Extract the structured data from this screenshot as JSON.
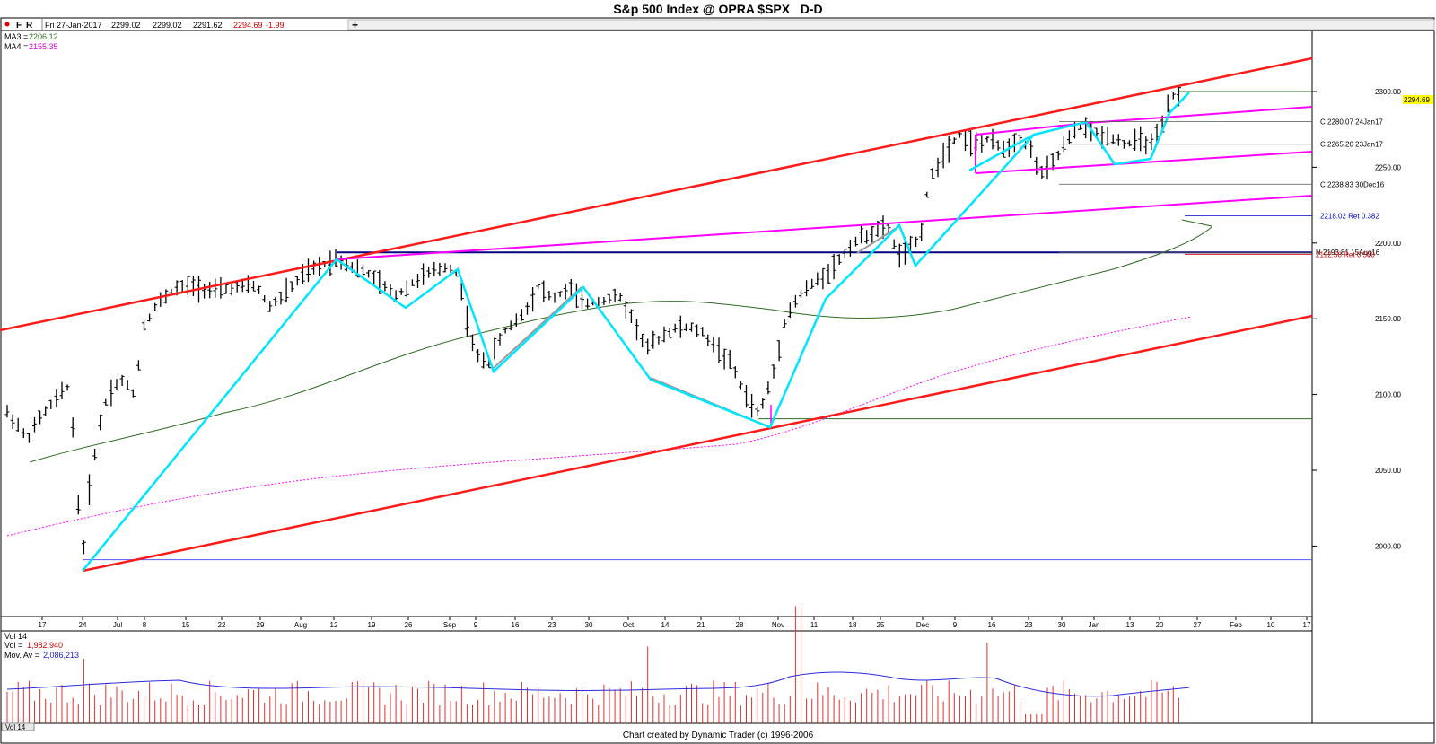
{
  "title": "S&p 500 Index @ OPRA $SPX   D-D",
  "footer": "Chart created by Dynamic Trader  (c) 1996-2006",
  "header": {
    "buttons": [
      "F",
      "R"
    ],
    "date": "Fri 27-Jan-2017",
    "open": "2299.02",
    "high": "2299.02",
    "low": "2291.62",
    "close": "2294.69",
    "change": "-1.99",
    "plus": "+"
  },
  "legend": {
    "ma3_label": "MA3 =",
    "ma3_value": "2206.12",
    "ma4_label": "MA4 =",
    "ma4_value": "2155.35"
  },
  "colors": {
    "channel": "#ff1a1a",
    "pink": "#ff00ff",
    "swing": "#00e5ff",
    "grey": "#999999",
    "navy": "#000080",
    "ma3": "#2e6b22",
    "ma4": "#ff00ff",
    "vol": "#e03030",
    "volavg": "#2b2bdc"
  },
  "annotations": [
    {
      "text": "C 2280.07 24Jan17",
      "price": 2280.07,
      "color": "#000000"
    },
    {
      "text": "C 2265.20 23Jan17",
      "price": 2265.2,
      "color": "#000000"
    },
    {
      "text": "C 2238.83 30Dec16",
      "price": 2238.83,
      "color": "#000000"
    },
    {
      "text": "2218.02 Ret 0.382",
      "price": 2218.02,
      "color": "#0000cc"
    },
    {
      "text": "H 2193.81 15Aug16",
      "price": 2193.81,
      "color": "#000000"
    },
    {
      "text": "2192.58 Ret 0.500",
      "price": 2192.58,
      "color": "#cc0000"
    }
  ],
  "last_price_tag": "2294.69",
  "chart_data": [
    {
      "type": "ohlc",
      "ylim": [
        1960,
        2340
      ],
      "y_ticks": [
        "2300.00",
        "2250.00",
        "2200.00",
        "2150.00",
        "2100.00",
        "2050.00",
        "2000.00"
      ],
      "x_ticks": [
        "17",
        "24",
        "Jul",
        "8",
        "15",
        "22",
        "29",
        "Aug",
        "12",
        "19",
        "26",
        "Sep",
        "9",
        "16",
        "23",
        "30",
        "Oct",
        "14",
        "21",
        "28",
        "Nov",
        "11",
        "18",
        "25",
        "Dec",
        "9",
        "16",
        "23",
        "30",
        "Jan",
        "13",
        "20",
        "27",
        "Feb",
        "10",
        "17"
      ],
      "series": [
        {
          "name": "MA3",
          "values": [
            2206.12
          ]
        },
        {
          "name": "MA4",
          "values": [
            2155.35
          ]
        }
      ],
      "swing_points": [
        [
          "24",
          1991
        ],
        [
          "Aug 12",
          2193
        ],
        [
          "Aug 26",
          2162
        ],
        [
          "Sep 5",
          2187
        ],
        [
          "Sep 12",
          2120
        ],
        [
          "Sep 30",
          2175
        ],
        [
          "Oct 12",
          2114
        ],
        [
          "Nov 4",
          2084
        ],
        [
          "Nov 28",
          2213
        ],
        [
          "Dec 1",
          2188
        ],
        [
          "Dec 20",
          2275
        ],
        [
          "Dec 30",
          2247
        ],
        [
          "Jan 5",
          2282
        ],
        [
          "Jan 10",
          2255
        ],
        [
          "Jan 19",
          2259
        ],
        [
          "Jan 26",
          2300
        ]
      ]
    },
    {
      "type": "bar",
      "title": "Vol 14",
      "series": [
        {
          "name": "Vol",
          "values": [
            1982940
          ]
        },
        {
          "name": "Mov. Av",
          "values": [
            2086213
          ]
        }
      ],
      "labels": {
        "vol": "Vol =",
        "vol_value": "1,982,940",
        "mav": "Mov. Av =",
        "mav_value": "2,086,213"
      },
      "tab": "Vol 14"
    }
  ]
}
